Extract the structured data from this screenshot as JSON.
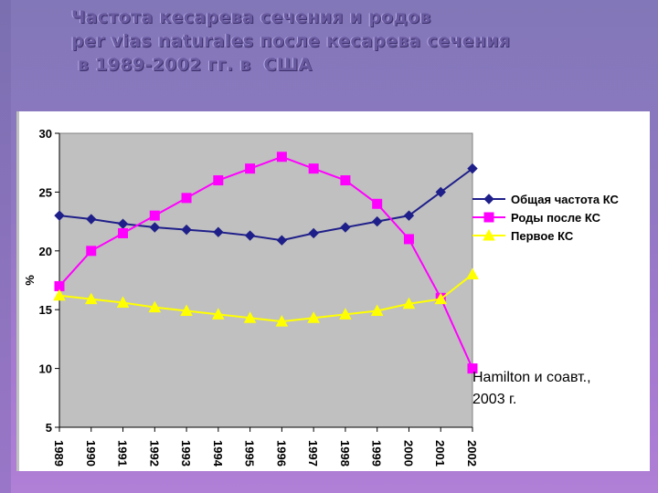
{
  "title": {
    "line1": "Частота кесарева сечения и родов",
    "line2": "per vias naturales после кесарева сечения",
    "line3": " в 1989-2002 гг. в  США"
  },
  "chart_data": {
    "type": "line",
    "x": [
      "1989",
      "1990",
      "1991",
      "1992",
      "1993",
      "1994",
      "1995",
      "1996",
      "1997",
      "1998",
      "1999",
      "2000",
      "2001",
      "2002"
    ],
    "ylabel": "%",
    "ylim": [
      5,
      30
    ],
    "yticks": [
      "5",
      "10",
      "15",
      "20",
      "25",
      "30"
    ],
    "grid": false,
    "legend_position": "right",
    "plot_background": "#c0c0c0",
    "series": [
      {
        "name": "Общая частота КС",
        "color": "#1f1f8a",
        "marker": "diamond",
        "values": [
          23.0,
          22.7,
          22.3,
          22.0,
          21.8,
          21.6,
          21.3,
          20.9,
          21.5,
          22.0,
          22.5,
          23.0,
          25.0,
          27.0
        ]
      },
      {
        "name": "Роды после КС",
        "color": "#ff00ff",
        "marker": "square",
        "values": [
          17.0,
          20.0,
          21.5,
          23.0,
          24.5,
          26.0,
          27.0,
          28.0,
          27.0,
          26.0,
          24.0,
          21.0,
          16.0,
          10.0
        ]
      },
      {
        "name": "Первое КС",
        "color": "#ffff00",
        "marker": "triangle",
        "values": [
          16.2,
          15.9,
          15.6,
          15.2,
          14.9,
          14.6,
          14.3,
          14.0,
          14.3,
          14.6,
          14.9,
          15.5,
          15.9,
          18.0
        ]
      }
    ],
    "annotation": {
      "line1": "Hamilton и соавт.,",
      "line2": "2003 г."
    }
  }
}
